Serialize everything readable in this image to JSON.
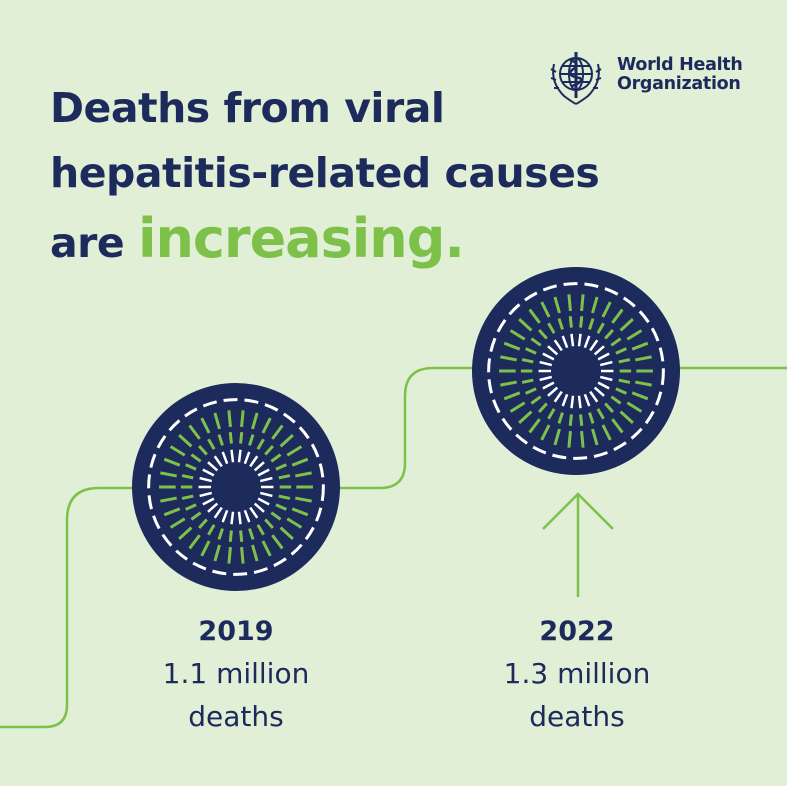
{
  "headline": {
    "line1": "Deaths from viral",
    "line2": "hepatitis-related causes",
    "line3_prefix": "are ",
    "line3_accent": "increasing."
  },
  "logo": {
    "line1": "World Health",
    "line2": "Organization",
    "icon": "who-emblem-icon"
  },
  "stats": [
    {
      "year": "2019",
      "value_line1": "1.1 million",
      "value_line2": "deaths"
    },
    {
      "year": "2022",
      "value_line1": "1.3 million",
      "value_line2": "deaths"
    }
  ],
  "colors": {
    "background": "#e1efd6",
    "navy": "#1c2a5c",
    "green": "#7ec14a",
    "white": "#ffffff"
  }
}
